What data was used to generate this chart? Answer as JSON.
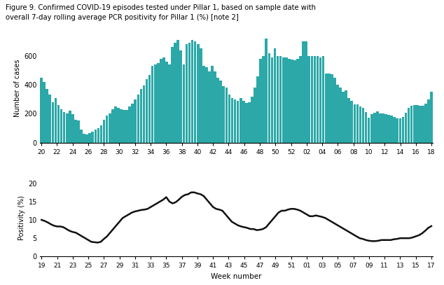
{
  "title": "Figure 9. Confirmed COVID-19 episodes tested under Pillar 1, based on sample date with\noverall 7-day rolling average PCR positivity for Pillar 1 (%) [note 2]",
  "bar_color": "#2ca8a8",
  "line_color": "#111111",
  "bar_ylabel": "Number of cases",
  "line_ylabel": "Positivity (%)",
  "xlabel": "Week number",
  "bar_yticks": [
    0,
    200,
    400,
    600
  ],
  "line_yticks": [
    0,
    5,
    10,
    15,
    20
  ],
  "bar_xlabels": [
    "20",
    "22",
    "24",
    "26",
    "28",
    "30",
    "32",
    "34",
    "36",
    "38",
    "40",
    "42",
    "44",
    "46",
    "48",
    "50",
    "52",
    "02",
    "04",
    "06",
    "08",
    "10",
    "12",
    "14",
    "16",
    "18"
  ],
  "line_xlabels": [
    "19",
    "21",
    "23",
    "25",
    "27",
    "29",
    "31",
    "33",
    "35",
    "37",
    "39",
    "41",
    "43",
    "45",
    "47",
    "49",
    "51",
    "01",
    "03",
    "05",
    "07",
    "09",
    "11",
    "13",
    "15",
    "17"
  ],
  "bar_data": [
    450,
    420,
    370,
    330,
    280,
    310,
    260,
    230,
    210,
    200,
    220,
    195,
    160,
    155,
    90,
    60,
    55,
    65,
    75,
    90,
    100,
    120,
    160,
    185,
    200,
    230,
    250,
    240,
    230,
    225,
    225,
    250,
    270,
    300,
    330,
    370,
    395,
    440,
    470,
    530,
    540,
    550,
    580,
    590,
    560,
    540,
    660,
    690,
    710,
    640,
    540,
    680,
    690,
    710,
    700,
    680,
    650,
    530,
    520,
    490,
    530,
    490,
    450,
    430,
    390,
    380,
    330,
    310,
    300,
    290,
    310,
    290,
    275,
    280,
    320,
    380,
    460,
    580,
    600,
    720,
    620,
    590,
    650,
    600,
    600,
    590,
    590,
    580,
    575,
    570,
    580,
    600,
    700,
    700,
    600,
    600,
    600,
    600,
    590,
    600,
    480,
    480,
    475,
    450,
    400,
    380,
    350,
    360,
    310,
    290,
    265,
    265,
    250,
    240,
    210,
    170,
    195,
    205,
    215,
    200,
    200,
    195,
    190,
    185,
    175,
    165,
    165,
    175,
    205,
    240,
    255,
    260,
    260,
    255,
    255,
    270,
    300,
    350
  ],
  "line_data": [
    10.0,
    9.7,
    9.3,
    8.8,
    8.4,
    8.2,
    8.2,
    8.0,
    7.5,
    7.0,
    6.7,
    6.5,
    6.0,
    5.5,
    5.0,
    4.5,
    4.0,
    3.9,
    3.8,
    4.0,
    4.8,
    5.5,
    6.5,
    7.5,
    8.5,
    9.5,
    10.5,
    11.0,
    11.5,
    12.0,
    12.3,
    12.5,
    12.7,
    12.8,
    13.0,
    13.5,
    14.0,
    14.5,
    15.0,
    15.5,
    16.2,
    15.0,
    14.5,
    14.8,
    15.5,
    16.3,
    16.8,
    17.0,
    17.5,
    17.5,
    17.2,
    17.0,
    16.5,
    15.5,
    14.5,
    13.5,
    13.0,
    12.8,
    12.5,
    11.5,
    10.5,
    9.5,
    9.0,
    8.5,
    8.2,
    8.0,
    7.8,
    7.5,
    7.5,
    7.2,
    7.3,
    7.5,
    8.0,
    9.0,
    10.0,
    11.0,
    12.0,
    12.5,
    12.5,
    12.8,
    13.0,
    13.0,
    12.8,
    12.5,
    12.0,
    11.5,
    11.0,
    11.0,
    11.2,
    11.0,
    10.8,
    10.5,
    10.0,
    9.5,
    9.0,
    8.5,
    8.0,
    7.5,
    7.0,
    6.5,
    6.0,
    5.5,
    5.0,
    4.8,
    4.5,
    4.3,
    4.2,
    4.2,
    4.3,
    4.5,
    4.5,
    4.5,
    4.5,
    4.7,
    4.8,
    5.0,
    5.0,
    5.0,
    5.0,
    5.2,
    5.5,
    5.8,
    6.3,
    7.0,
    7.8,
    8.3
  ]
}
